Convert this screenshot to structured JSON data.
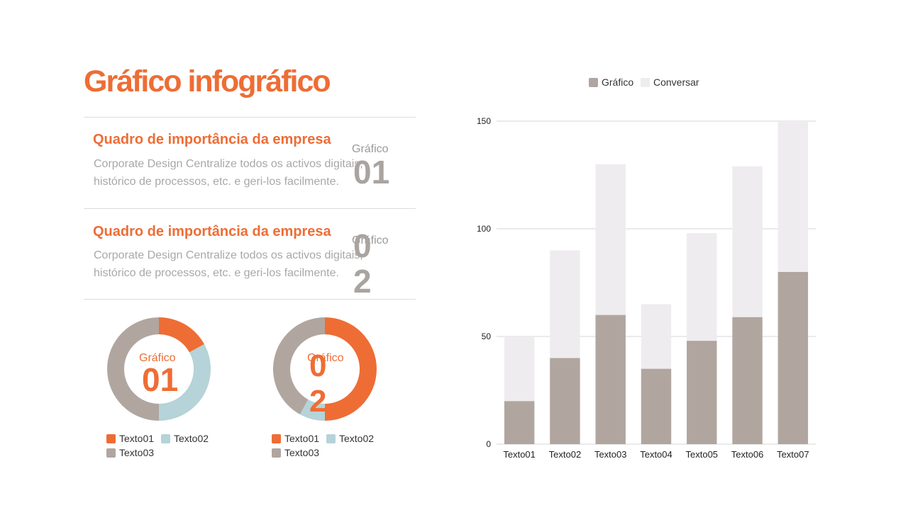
{
  "page": {
    "title": "Gráfico infográfico"
  },
  "sections": [
    {
      "title": "Quadro de importância da empresa",
      "body": "Corporate Design Centralize todos os activos digitais, histórico de processos, etc. e geri-los facilmente.",
      "badge_label": "Gráfico",
      "badge_number": "01"
    },
    {
      "title": "Quadro de importância da empresa",
      "body": "Corporate Design Centralize todos os activos digitais, histórico de processos, etc. e geri-los facilmente.",
      "badge_label": "Gráfico",
      "badge_number": "02"
    }
  ],
  "colors": {
    "accent": "#ee6d35",
    "grey": "#b0a69f",
    "light": "#efecef",
    "blue": "#b5d3d8"
  },
  "chart_data": [
    {
      "type": "pie",
      "center_label": "Gráfico",
      "center_number": "01",
      "categories": [
        "Texto01",
        "Texto02",
        "Texto03"
      ],
      "values": [
        17,
        33,
        50
      ],
      "colors": [
        "#ee6d35",
        "#b5d3d8",
        "#b0a69f"
      ]
    },
    {
      "type": "pie",
      "center_label": "Gráfico",
      "center_number": "02",
      "categories": [
        "Texto01",
        "Texto02",
        "Texto03"
      ],
      "values": [
        50,
        8,
        42
      ],
      "colors": [
        "#ee6d35",
        "#b5d3d8",
        "#b0a69f"
      ]
    },
    {
      "type": "bar",
      "stacked": true,
      "categories": [
        "Texto01",
        "Texto02",
        "Texto03",
        "Texto04",
        "Texto05",
        "Texto06",
        "Texto07"
      ],
      "series": [
        {
          "name": "Gráfico",
          "values": [
            20,
            40,
            60,
            35,
            48,
            59,
            80
          ],
          "color": "#b0a69f"
        },
        {
          "name": "Conversar",
          "values": [
            30,
            50,
            70,
            30,
            50,
            70,
            70
          ],
          "color": "#efecef"
        }
      ],
      "ylim": [
        0,
        150
      ],
      "yticks": [
        0,
        50,
        100,
        150
      ],
      "grid": true,
      "legend": "top-center"
    }
  ]
}
